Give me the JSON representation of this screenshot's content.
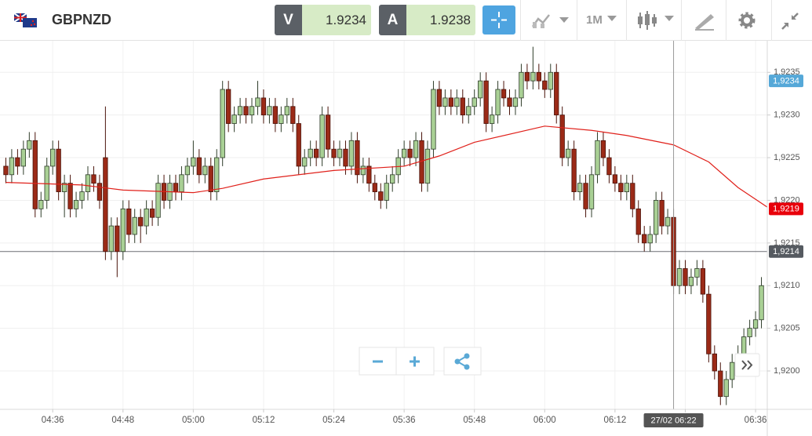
{
  "header": {
    "symbol": "GBPNZD",
    "sell_label": "V",
    "sell_price": 1.9234,
    "buy_label": "A",
    "buy_price": 1.9238,
    "timeframe": "1M"
  },
  "chart_data": {
    "type": "candlestick",
    "up_color": "#a9d095",
    "down_color": "#9b2a17",
    "xlim": [
      "04:27",
      "06:38"
    ],
    "xticks": [
      "04:36",
      "04:48",
      "05:00",
      "05:12",
      "05:24",
      "05:36",
      "05:48",
      "06:00",
      "06:12",
      "06:24",
      "06:36"
    ],
    "ylim": [
      1.91955,
      1.92387
    ],
    "yticks": [
      {
        "value": 1.92,
        "label": "1,9200"
      },
      {
        "value": 1.9205,
        "label": "1,9205"
      },
      {
        "value": 1.921,
        "label": "1,9210"
      },
      {
        "value": 1.9215,
        "label": "1,9215"
      },
      {
        "value": 1.922,
        "label": "1,9220"
      },
      {
        "value": 1.9225,
        "label": "1,9225"
      },
      {
        "value": 1.923,
        "label": "1,9230"
      },
      {
        "value": 1.9235,
        "label": "1,9235"
      }
    ],
    "grid": true,
    "candles": {
      "x": [
        "04:28",
        "04:29",
        "04:30",
        "04:31",
        "04:32",
        "04:33",
        "04:34",
        "04:35",
        "04:36",
        "04:37",
        "04:38",
        "04:39",
        "04:40",
        "04:41",
        "04:42",
        "04:43",
        "04:44",
        "04:45",
        "04:46",
        "04:47",
        "04:48",
        "04:49",
        "04:50",
        "04:51",
        "04:52",
        "04:53",
        "04:54",
        "04:55",
        "04:56",
        "04:57",
        "04:58",
        "04:59",
        "05:00",
        "05:01",
        "05:02",
        "05:03",
        "05:04",
        "05:05",
        "05:06",
        "05:07",
        "05:08",
        "05:09",
        "05:10",
        "05:11",
        "05:12",
        "05:13",
        "05:14",
        "05:15",
        "05:16",
        "05:17",
        "05:18",
        "05:19",
        "05:20",
        "05:21",
        "05:22",
        "05:23",
        "05:24",
        "05:25",
        "05:26",
        "05:27",
        "05:28",
        "05:29",
        "05:30",
        "05:31",
        "05:32",
        "05:33",
        "05:34",
        "05:35",
        "05:36",
        "05:37",
        "05:38",
        "05:39",
        "05:40",
        "05:41",
        "05:42",
        "05:43",
        "05:44",
        "05:45",
        "05:46",
        "05:47",
        "05:48",
        "05:49",
        "05:50",
        "05:51",
        "05:52",
        "05:53",
        "05:54",
        "05:55",
        "05:56",
        "05:57",
        "05:58",
        "05:59",
        "06:00",
        "06:01",
        "06:02",
        "06:03",
        "06:04",
        "06:05",
        "06:06",
        "06:07",
        "06:08",
        "06:09",
        "06:10",
        "06:11",
        "06:12",
        "06:13",
        "06:14",
        "06:15",
        "06:16",
        "06:17",
        "06:18",
        "06:19",
        "06:20",
        "06:21",
        "06:22",
        "06:23",
        "06:24",
        "06:25",
        "06:26",
        "06:27",
        "06:28",
        "06:29",
        "06:30",
        "06:31",
        "06:32",
        "06:33",
        "06:34",
        "06:35",
        "06:36",
        "06:37"
      ],
      "open": [
        1.9224,
        1.9223,
        1.9225,
        1.9224,
        1.9226,
        1.9227,
        1.9219,
        1.922,
        1.9224,
        1.9226,
        1.9221,
        1.9222,
        1.9219,
        1.922,
        1.9221,
        1.9223,
        1.9222,
        1.9225,
        1.9214,
        1.9217,
        1.9214,
        1.9219,
        1.9216,
        1.9218,
        1.9217,
        1.9219,
        1.9218,
        1.9222,
        1.922,
        1.9222,
        1.9221,
        1.9223,
        1.9224,
        1.9225,
        1.9223,
        1.9224,
        1.9221,
        1.9225,
        1.9233,
        1.9229,
        1.923,
        1.9231,
        1.923,
        1.9231,
        1.9232,
        1.923,
        1.9231,
        1.9229,
        1.923,
        1.9231,
        1.9229,
        1.9224,
        1.9225,
        1.9226,
        1.9225,
        1.923,
        1.9226,
        1.9225,
        1.9226,
        1.9224,
        1.9227,
        1.9223,
        1.9224,
        1.9222,
        1.9221,
        1.922,
        1.9222,
        1.9223,
        1.9225,
        1.9226,
        1.9225,
        1.9227,
        1.9222,
        1.9226,
        1.9233,
        1.9231,
        1.9232,
        1.9231,
        1.9232,
        1.923,
        1.9231,
        1.9232,
        1.9234,
        1.9229,
        1.923,
        1.9233,
        1.9232,
        1.9231,
        1.9232,
        1.9235,
        1.9234,
        1.9235,
        1.9234,
        1.9233,
        1.9235,
        1.923,
        1.9225,
        1.9226,
        1.9221,
        1.9222,
        1.9219,
        1.9223,
        1.9227,
        1.9225,
        1.9223,
        1.9222,
        1.9221,
        1.9222,
        1.9219,
        1.9216,
        1.9215,
        1.9216,
        1.922,
        1.9217,
        1.9218,
        1.921,
        1.9212,
        1.921,
        1.9211,
        1.9212,
        1.9209,
        1.9202,
        1.92,
        1.9197,
        1.9199,
        1.9201,
        1.9202,
        1.9204,
        1.9205,
        1.9206
      ],
      "high": [
        1.9225,
        1.9226,
        1.9226,
        1.9227,
        1.9228,
        1.9228,
        1.9221,
        1.9225,
        1.9227,
        1.9227,
        1.9223,
        1.9223,
        1.9221,
        1.9222,
        1.9224,
        1.9224,
        1.9223,
        1.9231,
        1.9218,
        1.9218,
        1.922,
        1.922,
        1.9219,
        1.9219,
        1.922,
        1.922,
        1.9223,
        1.9223,
        1.9223,
        1.9223,
        1.9224,
        1.9225,
        1.9227,
        1.9226,
        1.9225,
        1.9225,
        1.9226,
        1.9234,
        1.9234,
        1.9231,
        1.9232,
        1.9232,
        1.9232,
        1.9234,
        1.9233,
        1.9232,
        1.9232,
        1.9231,
        1.9232,
        1.9232,
        1.923,
        1.9226,
        1.9227,
        1.9227,
        1.9231,
        1.9231,
        1.9227,
        1.9227,
        1.9227,
        1.9228,
        1.9228,
        1.9225,
        1.9225,
        1.9223,
        1.9222,
        1.9223,
        1.9224,
        1.9226,
        1.9227,
        1.9227,
        1.9228,
        1.9228,
        1.9227,
        1.9234,
        1.9234,
        1.9233,
        1.9233,
        1.9233,
        1.9233,
        1.9232,
        1.9233,
        1.9235,
        1.9235,
        1.9231,
        1.9234,
        1.9234,
        1.9233,
        1.9233,
        1.9236,
        1.9236,
        1.9238,
        1.9236,
        1.9235,
        1.9236,
        1.9236,
        1.9231,
        1.9227,
        1.9227,
        1.9223,
        1.9223,
        1.9224,
        1.9228,
        1.9228,
        1.9226,
        1.9224,
        1.9223,
        1.9223,
        1.9223,
        1.922,
        1.9217,
        1.9217,
        1.9221,
        1.9221,
        1.9219,
        1.9219,
        1.9213,
        1.9213,
        1.9212,
        1.9213,
        1.9213,
        1.921,
        1.9203,
        1.9201,
        1.92,
        1.9202,
        1.9203,
        1.9205,
        1.9206,
        1.9207,
        1.9211
      ],
      "low": [
        1.9222,
        1.9222,
        1.9223,
        1.9223,
        1.9225,
        1.9218,
        1.9218,
        1.9219,
        1.9223,
        1.922,
        1.9218,
        1.9218,
        1.9218,
        1.9219,
        1.922,
        1.9221,
        1.9219,
        1.9213,
        1.9213,
        1.9211,
        1.9213,
        1.9215,
        1.9215,
        1.9215,
        1.9216,
        1.9217,
        1.9217,
        1.9219,
        1.9219,
        1.922,
        1.922,
        1.9222,
        1.9223,
        1.9222,
        1.9222,
        1.922,
        1.922,
        1.9224,
        1.9228,
        1.9228,
        1.9229,
        1.9229,
        1.9229,
        1.923,
        1.9229,
        1.9229,
        1.9228,
        1.9228,
        1.9229,
        1.9228,
        1.9223,
        1.9223,
        1.9224,
        1.9224,
        1.9224,
        1.9225,
        1.9224,
        1.9224,
        1.9223,
        1.9223,
        1.9222,
        1.9222,
        1.9221,
        1.922,
        1.9219,
        1.9219,
        1.9221,
        1.9222,
        1.9224,
        1.9224,
        1.9224,
        1.9221,
        1.9221,
        1.9225,
        1.923,
        1.923,
        1.923,
        1.923,
        1.9229,
        1.9229,
        1.923,
        1.9231,
        1.9228,
        1.9228,
        1.9229,
        1.9231,
        1.923,
        1.923,
        1.9231,
        1.9233,
        1.9233,
        1.9233,
        1.9232,
        1.9232,
        1.9229,
        1.9224,
        1.9224,
        1.922,
        1.922,
        1.9218,
        1.9218,
        1.9222,
        1.9224,
        1.9222,
        1.9221,
        1.922,
        1.922,
        1.9218,
        1.9215,
        1.9214,
        1.9214,
        1.9215,
        1.9216,
        1.9216,
        1.9209,
        1.9209,
        1.9209,
        1.9209,
        1.921,
        1.9208,
        1.9201,
        1.9199,
        1.9196,
        1.9196,
        1.9198,
        1.92,
        1.9201,
        1.9203,
        1.9204,
        1.9205
      ],
      "close": [
        1.9223,
        1.9225,
        1.9224,
        1.9226,
        1.9227,
        1.9219,
        1.922,
        1.9224,
        1.9226,
        1.9221,
        1.9222,
        1.9219,
        1.922,
        1.9221,
        1.9223,
        1.9222,
        1.922,
        1.9214,
        1.9217,
        1.9214,
        1.9219,
        1.9216,
        1.9218,
        1.9217,
        1.9219,
        1.9218,
        1.9222,
        1.922,
        1.9222,
        1.9221,
        1.9223,
        1.9224,
        1.9225,
        1.9223,
        1.9224,
        1.9221,
        1.9225,
        1.9233,
        1.9229,
        1.923,
        1.9231,
        1.923,
        1.9231,
        1.9232,
        1.923,
        1.9231,
        1.9229,
        1.923,
        1.9231,
        1.9229,
        1.9224,
        1.9225,
        1.9226,
        1.9225,
        1.923,
        1.9226,
        1.9225,
        1.9226,
        1.9224,
        1.9227,
        1.9223,
        1.9224,
        1.9222,
        1.9221,
        1.922,
        1.9222,
        1.9223,
        1.9225,
        1.9226,
        1.9225,
        1.9227,
        1.9222,
        1.9226,
        1.9233,
        1.9231,
        1.9232,
        1.9231,
        1.9232,
        1.923,
        1.9231,
        1.9232,
        1.9234,
        1.9229,
        1.923,
        1.9233,
        1.9232,
        1.9231,
        1.9232,
        1.9235,
        1.9234,
        1.9235,
        1.9234,
        1.9233,
        1.9235,
        1.923,
        1.9225,
        1.9226,
        1.9221,
        1.9222,
        1.9219,
        1.9223,
        1.9227,
        1.9225,
        1.9223,
        1.9222,
        1.9221,
        1.9222,
        1.9219,
        1.9216,
        1.9215,
        1.9216,
        1.922,
        1.9217,
        1.9218,
        1.921,
        1.9212,
        1.921,
        1.9211,
        1.9212,
        1.9209,
        1.9202,
        1.92,
        1.9197,
        1.9199,
        1.9201,
        1.9202,
        1.9204,
        1.9205,
        1.9206,
        1.921
      ]
    },
    "moving_average": {
      "color": "#e0201a",
      "x": [
        "04:28",
        "04:41",
        "04:48",
        "05:00",
        "05:05",
        "05:12",
        "05:24",
        "05:36",
        "05:42",
        "05:48",
        "06:00",
        "06:08",
        "06:14",
        "06:22",
        "06:28",
        "06:33",
        "06:38"
      ],
      "values": [
        1.92221,
        1.92218,
        1.92212,
        1.92209,
        1.92214,
        1.92225,
        1.92235,
        1.9224,
        1.92252,
        1.92268,
        1.92287,
        1.92282,
        1.92276,
        1.92265,
        1.92245,
        1.92215,
        1.92192
      ]
    },
    "price_tags": [
      {
        "value": 1.9234,
        "label": "1,9234",
        "color": "#55a8d8"
      },
      {
        "value": 1.9219,
        "label": "1,9219",
        "color": "#e8000b"
      },
      {
        "value": 1.9214,
        "label": "1,9214",
        "color": "#555a60"
      }
    ],
    "last_price_line": 1.9214,
    "crosshair": {
      "x": "06:22",
      "label": "27/02 06:22"
    }
  }
}
